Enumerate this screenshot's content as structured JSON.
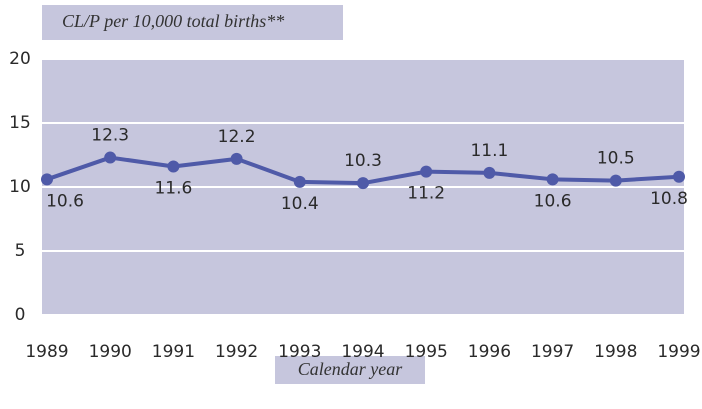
{
  "chart_data": {
    "type": "line",
    "title": "CL/P per 10,000 total births**",
    "x_label": "Calendar year",
    "categories": [
      "1989",
      "1990",
      "1991",
      "1992",
      "1993",
      "1994",
      "1995",
      "1996",
      "1997",
      "1998",
      "1999"
    ],
    "series": [
      {
        "name": "CL/P",
        "color": "#4f5aa8",
        "values": [
          10.6,
          12.3,
          11.6,
          12.2,
          10.4,
          10.3,
          11.2,
          11.1,
          10.6,
          10.5,
          10.8
        ]
      }
    ],
    "ylim": [
      0,
      20
    ],
    "yticks": [
      0,
      5,
      10,
      15,
      20
    ],
    "grid": true,
    "background": "#c6c6dd"
  }
}
